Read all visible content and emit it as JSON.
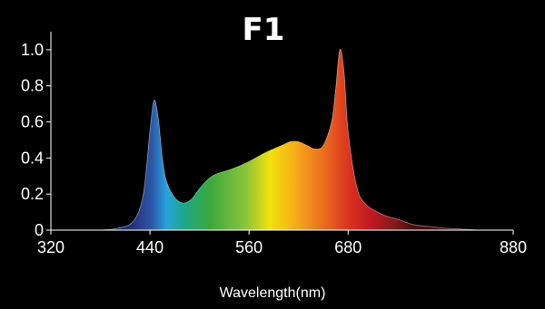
{
  "chart_data": {
    "type": "area",
    "title": "F1",
    "xlabel": "Wavelength(nm)",
    "ylabel": "",
    "xlim": [
      320,
      880
    ],
    "ylim": [
      0,
      1.1
    ],
    "x_ticks": [
      320,
      440,
      560,
      680,
      880
    ],
    "x_tick_labels": [
      "320",
      "440",
      "560",
      "680",
      "880"
    ],
    "y_ticks": [
      0,
      0.2,
      0.4,
      0.6,
      0.8,
      1.0
    ],
    "y_tick_labels": [
      "0",
      "0.2",
      "0.4",
      "0.6",
      "0.8",
      "1.0"
    ],
    "grid": false,
    "legend": "none",
    "fill": "visible-spectrum gradient",
    "series": [
      {
        "x": [
          380,
          400,
          420,
          432,
          440,
          445,
          450,
          455,
          460,
          470,
          480,
          490,
          500,
          510,
          520,
          540,
          560,
          580,
          600,
          610,
          620,
          630,
          640,
          650,
          660,
          665,
          670,
          675,
          680,
          690,
          700,
          720,
          740,
          760,
          780,
          800,
          820,
          840
        ],
        "y": [
          0.0,
          0.01,
          0.05,
          0.2,
          0.55,
          0.72,
          0.62,
          0.4,
          0.27,
          0.18,
          0.15,
          0.17,
          0.23,
          0.28,
          0.31,
          0.34,
          0.38,
          0.43,
          0.47,
          0.49,
          0.49,
          0.47,
          0.45,
          0.47,
          0.6,
          0.78,
          1.0,
          0.88,
          0.55,
          0.25,
          0.15,
          0.09,
          0.06,
          0.03,
          0.02,
          0.01,
          0.005,
          0.0
        ]
      }
    ]
  }
}
